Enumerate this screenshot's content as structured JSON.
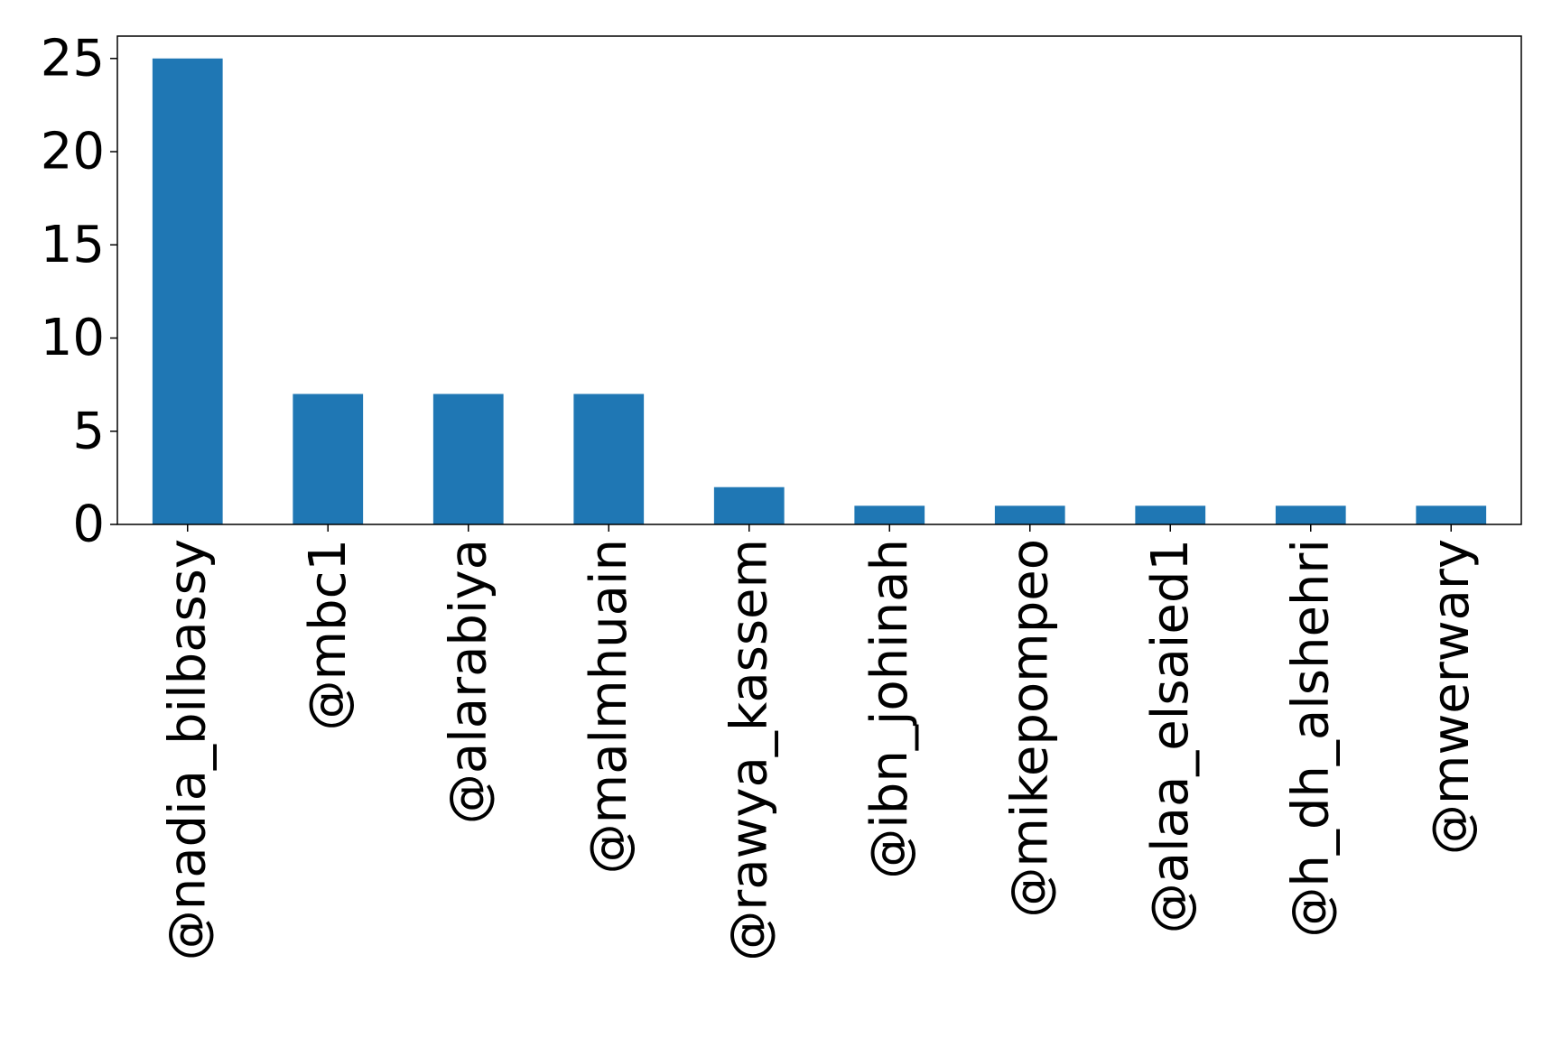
{
  "chart_data": {
    "type": "bar",
    "categories": [
      "@nadia_bilbassy",
      "@mbc1",
      "@alarabiya",
      "@malmhuain",
      "@rawya_kassem",
      "@ibn_johinah",
      "@mikepompeo",
      "@alaa_elsaied1",
      "@h_dh_alshehri",
      "@mwerwary"
    ],
    "values": [
      25,
      7,
      7,
      7,
      2,
      1,
      1,
      1,
      1,
      1
    ],
    "ylim": [
      0,
      26.2
    ],
    "yticks": [
      0,
      5,
      10,
      15,
      20,
      25
    ],
    "title": "",
    "xlabel": "",
    "ylabel": "",
    "grid": false,
    "bar_color": "#1f77b4"
  }
}
